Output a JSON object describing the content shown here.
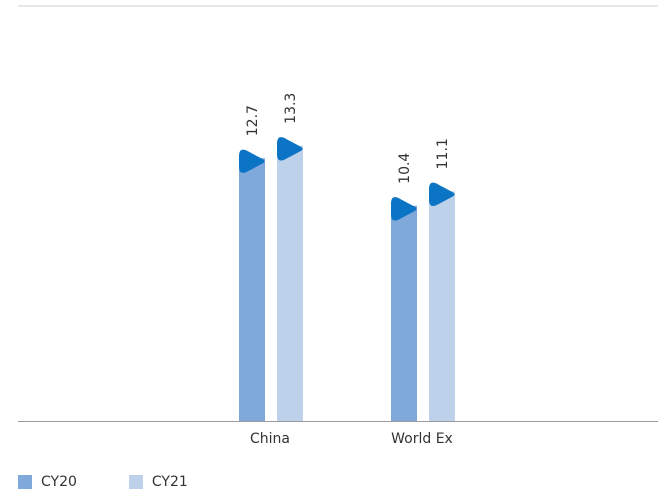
{
  "chart_data": {
    "type": "bar",
    "categories": [
      "China",
      "World Ex"
    ],
    "series": [
      {
        "name": "CY20",
        "values": [
          12.7,
          10.4
        ],
        "color": "#7fa8db"
      },
      {
        "name": "CY21",
        "values": [
          13.3,
          11.1
        ],
        "color": "#bdd1eb"
      }
    ],
    "value_labels": [
      [
        "12.7",
        "10.4"
      ],
      [
        "13.3",
        "11.1"
      ]
    ],
    "marker_color": "#0b74c4",
    "ylim": [
      0,
      14.5
    ],
    "grid": false,
    "legend_position": "bottom-left",
    "title": "",
    "xlabel": "",
    "ylabel": ""
  }
}
